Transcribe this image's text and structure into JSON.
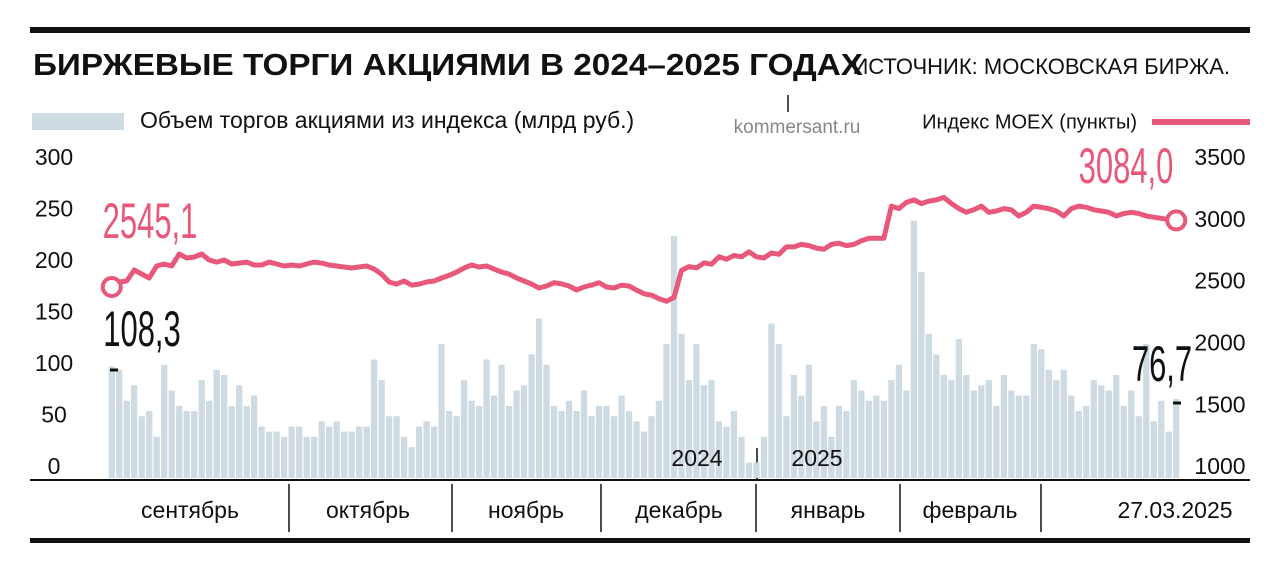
{
  "chart_data": {
    "type": "bar_line",
    "title": "БИРЖЕВЫЕ ТОРГИ АКЦИЯМИ В 2024–2025 ГОДАХ",
    "source": "ИСТОЧНИК: МОСКОВСКАЯ БИРЖА.",
    "watermark": "kommersant.ru",
    "ylim": [
      0,
      300
    ],
    "yticks": [
      0,
      50,
      100,
      150,
      200,
      250,
      300
    ],
    "y2lim": [
      1000,
      3500
    ],
    "y2ticks": [
      1000,
      1500,
      2000,
      2500,
      3000,
      3500
    ],
    "month_labels": [
      "сентябрь",
      "октябрь",
      "ноябрь",
      "декабрь",
      "январь",
      "февраль",
      "27.03.2025"
    ],
    "year_labels": [
      "2024",
      "2025"
    ],
    "series": [
      {
        "name": "Объем торгов акциями из индекса (млрд руб.)",
        "type": "bar",
        "color": "#cfdbe2",
        "values": [
          108.3,
          105,
          75,
          90,
          60,
          65,
          40,
          110,
          85,
          70,
          65,
          65,
          95,
          75,
          105,
          100,
          70,
          90,
          70,
          80,
          50,
          45,
          45,
          40,
          50,
          50,
          40,
          40,
          55,
          50,
          55,
          45,
          45,
          50,
          50,
          115,
          95,
          60,
          60,
          40,
          30,
          50,
          55,
          50,
          130,
          65,
          60,
          95,
          75,
          70,
          115,
          80,
          110,
          70,
          85,
          90,
          120,
          155,
          110,
          70,
          65,
          75,
          65,
          85,
          60,
          70,
          70,
          60,
          80,
          65,
          55,
          45,
          60,
          75,
          130,
          235,
          140,
          95,
          130,
          90,
          95,
          55,
          50,
          65,
          40,
          15,
          15,
          40,
          150,
          130,
          60,
          100,
          80,
          110,
          55,
          70,
          40,
          70,
          65,
          95,
          85,
          75,
          80,
          75,
          95,
          110,
          85,
          250,
          200,
          140,
          120,
          100,
          95,
          135,
          100,
          85,
          90,
          95,
          70,
          100,
          85,
          80,
          80,
          130,
          125,
          105,
          95,
          105,
          80,
          65,
          70,
          95,
          90,
          85,
          100,
          70,
          85,
          60,
          130,
          55,
          75,
          45,
          76.7
        ]
      },
      {
        "name": "Индекс MOEX (пункты)",
        "type": "line",
        "axis": "y2",
        "color": "#e8587a",
        "values": [
          2545.1,
          2586,
          2594,
          2683,
          2650,
          2618,
          2715,
          2731,
          2715,
          2812,
          2780,
          2788,
          2812,
          2764,
          2747,
          2764,
          2731,
          2739,
          2747,
          2723,
          2723,
          2747,
          2731,
          2715,
          2723,
          2715,
          2731,
          2747,
          2739,
          2723,
          2715,
          2707,
          2699,
          2707,
          2715,
          2690,
          2650,
          2586,
          2569,
          2594,
          2561,
          2569,
          2586,
          2594,
          2618,
          2640,
          2666,
          2699,
          2723,
          2707,
          2715,
          2690,
          2666,
          2650,
          2618,
          2594,
          2569,
          2537,
          2553,
          2580,
          2570,
          2553,
          2520,
          2545,
          2561,
          2580,
          2545,
          2537,
          2560,
          2553,
          2520,
          2490,
          2480,
          2450,
          2430,
          2460,
          2680,
          2710,
          2700,
          2740,
          2730,
          2790,
          2770,
          2800,
          2790,
          2830,
          2790,
          2780,
          2820,
          2810,
          2870,
          2870,
          2890,
          2880,
          2860,
          2850,
          2890,
          2900,
          2880,
          2890,
          2920,
          2940,
          2940,
          2940,
          3200,
          3180,
          3230,
          3250,
          3220,
          3240,
          3250,
          3270,
          3220,
          3180,
          3150,
          3170,
          3200,
          3150,
          3160,
          3180,
          3170,
          3120,
          3150,
          3200,
          3190,
          3180,
          3160,
          3120,
          3180,
          3200,
          3190,
          3170,
          3160,
          3150,
          3120,
          3140,
          3150,
          3140,
          3120,
          3110,
          3100,
          3090,
          3084.0
        ]
      }
    ],
    "annotations": [
      {
        "label": "2545,1",
        "value": 2545.1
      },
      {
        "label": "108,3",
        "value": 108.3
      },
      {
        "label": "76,7",
        "value": 76.7
      },
      {
        "label": "3084,0",
        "value": 3084.0
      }
    ]
  }
}
